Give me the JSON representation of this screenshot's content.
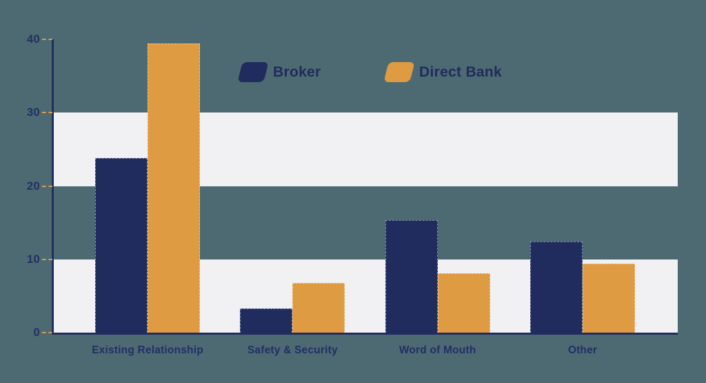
{
  "canvas": {
    "background_color": "#4d6a73",
    "band_color": "#f1f1f4",
    "axis_color": "#222d5f",
    "tick_dash_color": "#dd9a4a",
    "text_color": "#232e63"
  },
  "chart_data": {
    "type": "bar",
    "title": "",
    "xlabel": "",
    "ylabel": "",
    "categories": [
      "Existing Relationship",
      "Safety & Security",
      "Word of Mouth",
      "Other"
    ],
    "series": [
      {
        "name": "Broker",
        "color": "#212c5e",
        "values": [
          23.8,
          3.3,
          15.3,
          12.4
        ]
      },
      {
        "name": "Direct Bank",
        "color": "#df9b42",
        "values": [
          39.4,
          6.8,
          8.1,
          9.4
        ]
      }
    ],
    "ylim": [
      0,
      40
    ],
    "yticks": [
      0,
      10,
      20,
      30,
      40
    ],
    "legend_position": "top",
    "grid": "alternating horizontal bands: white for value ranges 0-10 and 20-30, teal background for 10-20 and 30-40"
  }
}
